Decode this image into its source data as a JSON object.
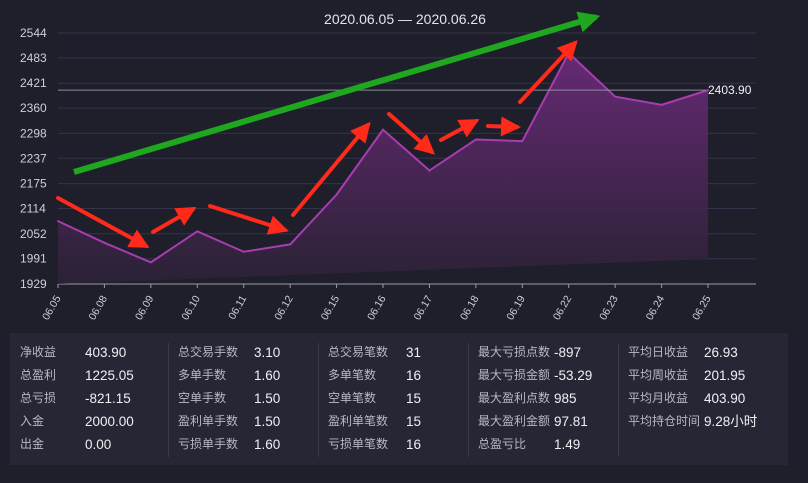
{
  "chart_data": {
    "type": "area",
    "title": "2020.06.05 — 2020.06.26",
    "categories": [
      "06.05",
      "06.08",
      "06.09",
      "06.10",
      "06.11",
      "06.12",
      "06.15",
      "06.16",
      "06.17",
      "06.18",
      "06.19",
      "06.22",
      "06.23",
      "06.24",
      "06.25"
    ],
    "series": [
      {
        "values": [
          2083,
          2030,
          1982,
          2058,
          2008,
          2026,
          2148,
          2307,
          2207,
          2283,
          2279,
          2495,
          2388,
          2368,
          2404
        ]
      }
    ],
    "yticks": [
      "2544",
      "2483",
      "2421",
      "2360",
      "2298",
      "2237",
      "2175",
      "2114",
      "2052",
      "1991",
      "1929"
    ],
    "ylim": [
      1929,
      2544
    ],
    "reference_line": {
      "value": 2403.9,
      "label": "2403.90"
    },
    "grid": true,
    "colors": {
      "line": "#a83cb0",
      "fill_top": "#6a2a78",
      "fill_bottom": "#2c2236",
      "trend_arrow": "#1fa81f",
      "annotation_arrows": "#ff2a1a",
      "reference_line": "#8a8a9a"
    }
  },
  "stats": [
    [
      {
        "label": "净收益",
        "value": "403.90"
      },
      {
        "label": "总盈利",
        "value": "1225.05"
      },
      {
        "label": "总亏损",
        "value": "-821.15"
      },
      {
        "label": "入金",
        "value": "2000.00"
      },
      {
        "label": "出金",
        "value": "0.00"
      }
    ],
    [
      {
        "label": "总交易手数",
        "value": "3.10"
      },
      {
        "label": "多单手数",
        "value": "1.60"
      },
      {
        "label": "空单手数",
        "value": "1.50"
      },
      {
        "label": "盈利单手数",
        "value": "1.50"
      },
      {
        "label": "亏损单手数",
        "value": "1.60"
      }
    ],
    [
      {
        "label": "总交易笔数",
        "value": "31"
      },
      {
        "label": "多单笔数",
        "value": "16"
      },
      {
        "label": "空单笔数",
        "value": "15"
      },
      {
        "label": "盈利单笔数",
        "value": "15"
      },
      {
        "label": "亏损单笔数",
        "value": "16"
      }
    ],
    [
      {
        "label": "最大亏损点数",
        "value": "-897"
      },
      {
        "label": "最大亏损金额",
        "value": "-53.29"
      },
      {
        "label": "最大盈利点数",
        "value": "985"
      },
      {
        "label": "最大盈利金额",
        "value": "97.81"
      },
      {
        "label": "总盈亏比",
        "value": "1.49"
      }
    ],
    [
      {
        "label": "平均日收益",
        "value": "26.93"
      },
      {
        "label": "平均周收益",
        "value": "201.95"
      },
      {
        "label": "平均月收益",
        "value": "403.90"
      },
      {
        "label": "平均持仓时间",
        "value": "9.28小时"
      }
    ]
  ]
}
